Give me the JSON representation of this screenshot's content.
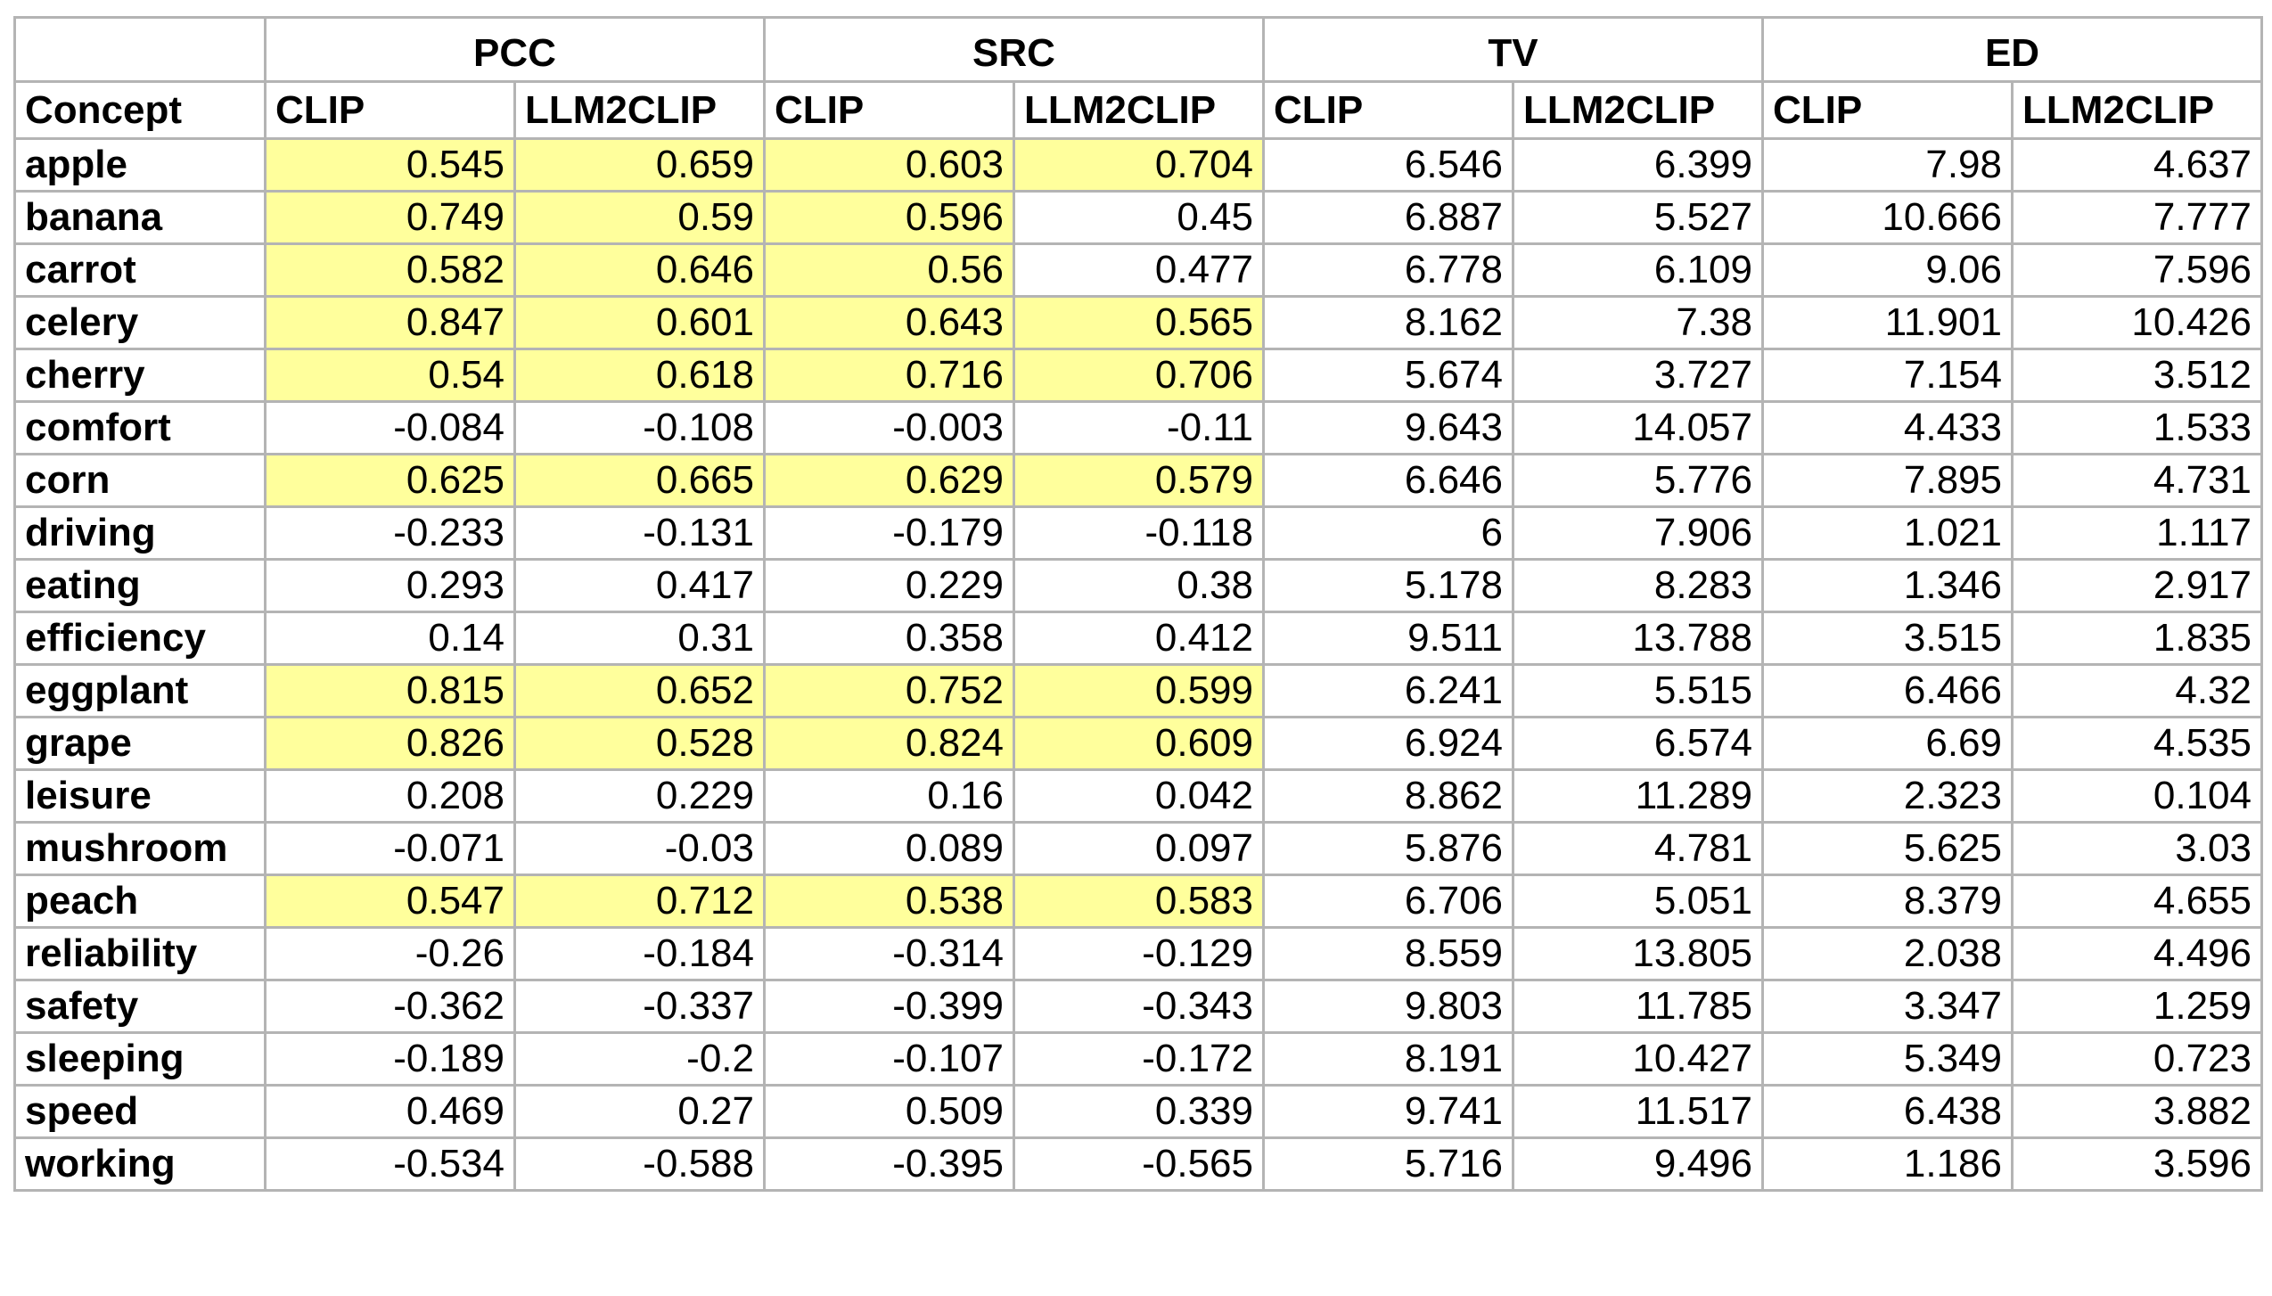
{
  "table": {
    "groups": [
      "PCC",
      "SRC",
      "TV",
      "ED"
    ],
    "concept_header": "Concept",
    "sub_headers": [
      "CLIP",
      "LLM2CLIP",
      "CLIP",
      "LLM2CLIP",
      "CLIP",
      "LLM2CLIP",
      "CLIP",
      "LLM2CLIP"
    ],
    "highlight_color": "#ffff9c",
    "rows": [
      {
        "concept": "apple",
        "values": [
          "0.545",
          "0.659",
          "0.603",
          "0.704",
          "6.546",
          "6.399",
          "7.98",
          "4.637"
        ],
        "highlighted": [
          true,
          true,
          true,
          true,
          false,
          false,
          false,
          false
        ]
      },
      {
        "concept": "banana",
        "values": [
          "0.749",
          "0.59",
          "0.596",
          "0.45",
          "6.887",
          "5.527",
          "10.666",
          "7.777"
        ],
        "highlighted": [
          true,
          true,
          true,
          false,
          false,
          false,
          false,
          false
        ]
      },
      {
        "concept": "carrot",
        "values": [
          "0.582",
          "0.646",
          "0.56",
          "0.477",
          "6.778",
          "6.109",
          "9.06",
          "7.596"
        ],
        "highlighted": [
          true,
          true,
          true,
          false,
          false,
          false,
          false,
          false
        ]
      },
      {
        "concept": "celery",
        "values": [
          "0.847",
          "0.601",
          "0.643",
          "0.565",
          "8.162",
          "7.38",
          "11.901",
          "10.426"
        ],
        "highlighted": [
          true,
          true,
          true,
          true,
          false,
          false,
          false,
          false
        ]
      },
      {
        "concept": "cherry",
        "values": [
          "0.54",
          "0.618",
          "0.716",
          "0.706",
          "5.674",
          "3.727",
          "7.154",
          "3.512"
        ],
        "highlighted": [
          true,
          true,
          true,
          true,
          false,
          false,
          false,
          false
        ]
      },
      {
        "concept": "comfort",
        "values": [
          "-0.084",
          "-0.108",
          "-0.003",
          "-0.11",
          "9.643",
          "14.057",
          "4.433",
          "1.533"
        ],
        "highlighted": [
          false,
          false,
          false,
          false,
          false,
          false,
          false,
          false
        ]
      },
      {
        "concept": "corn",
        "values": [
          "0.625",
          "0.665",
          "0.629",
          "0.579",
          "6.646",
          "5.776",
          "7.895",
          "4.731"
        ],
        "highlighted": [
          true,
          true,
          true,
          true,
          false,
          false,
          false,
          false
        ]
      },
      {
        "concept": "driving",
        "values": [
          "-0.233",
          "-0.131",
          "-0.179",
          "-0.118",
          "6",
          "7.906",
          "1.021",
          "1.117"
        ],
        "highlighted": [
          false,
          false,
          false,
          false,
          false,
          false,
          false,
          false
        ]
      },
      {
        "concept": "eating",
        "values": [
          "0.293",
          "0.417",
          "0.229",
          "0.38",
          "5.178",
          "8.283",
          "1.346",
          "2.917"
        ],
        "highlighted": [
          false,
          false,
          false,
          false,
          false,
          false,
          false,
          false
        ]
      },
      {
        "concept": "efficiency",
        "values": [
          "0.14",
          "0.31",
          "0.358",
          "0.412",
          "9.511",
          "13.788",
          "3.515",
          "1.835"
        ],
        "highlighted": [
          false,
          false,
          false,
          false,
          false,
          false,
          false,
          false
        ]
      },
      {
        "concept": "eggplant",
        "values": [
          "0.815",
          "0.652",
          "0.752",
          "0.599",
          "6.241",
          "5.515",
          "6.466",
          "4.32"
        ],
        "highlighted": [
          true,
          true,
          true,
          true,
          false,
          false,
          false,
          false
        ]
      },
      {
        "concept": "grape",
        "values": [
          "0.826",
          "0.528",
          "0.824",
          "0.609",
          "6.924",
          "6.574",
          "6.69",
          "4.535"
        ],
        "highlighted": [
          true,
          true,
          true,
          true,
          false,
          false,
          false,
          false
        ]
      },
      {
        "concept": "leisure",
        "values": [
          "0.208",
          "0.229",
          "0.16",
          "0.042",
          "8.862",
          "11.289",
          "2.323",
          "0.104"
        ],
        "highlighted": [
          false,
          false,
          false,
          false,
          false,
          false,
          false,
          false
        ]
      },
      {
        "concept": "mushroom",
        "values": [
          "-0.071",
          "-0.03",
          "0.089",
          "0.097",
          "5.876",
          "4.781",
          "5.625",
          "3.03"
        ],
        "highlighted": [
          false,
          false,
          false,
          false,
          false,
          false,
          false,
          false
        ]
      },
      {
        "concept": "peach",
        "values": [
          "0.547",
          "0.712",
          "0.538",
          "0.583",
          "6.706",
          "5.051",
          "8.379",
          "4.655"
        ],
        "highlighted": [
          true,
          true,
          true,
          true,
          false,
          false,
          false,
          false
        ]
      },
      {
        "concept": "reliability",
        "values": [
          "-0.26",
          "-0.184",
          "-0.314",
          "-0.129",
          "8.559",
          "13.805",
          "2.038",
          "4.496"
        ],
        "highlighted": [
          false,
          false,
          false,
          false,
          false,
          false,
          false,
          false
        ]
      },
      {
        "concept": "safety",
        "values": [
          "-0.362",
          "-0.337",
          "-0.399",
          "-0.343",
          "9.803",
          "11.785",
          "3.347",
          "1.259"
        ],
        "highlighted": [
          false,
          false,
          false,
          false,
          false,
          false,
          false,
          false
        ]
      },
      {
        "concept": "sleeping",
        "values": [
          "-0.189",
          "-0.2",
          "-0.107",
          "-0.172",
          "8.191",
          "10.427",
          "5.349",
          "0.723"
        ],
        "highlighted": [
          false,
          false,
          false,
          false,
          false,
          false,
          false,
          false
        ]
      },
      {
        "concept": "speed",
        "values": [
          "0.469",
          "0.27",
          "0.509",
          "0.339",
          "9.741",
          "11.517",
          "6.438",
          "3.882"
        ],
        "highlighted": [
          false,
          false,
          false,
          false,
          false,
          false,
          false,
          false
        ]
      },
      {
        "concept": "working",
        "values": [
          "-0.534",
          "-0.588",
          "-0.395",
          "-0.565",
          "5.716",
          "9.496",
          "1.186",
          "3.596"
        ],
        "highlighted": [
          false,
          false,
          false,
          false,
          false,
          false,
          false,
          false
        ]
      }
    ]
  }
}
